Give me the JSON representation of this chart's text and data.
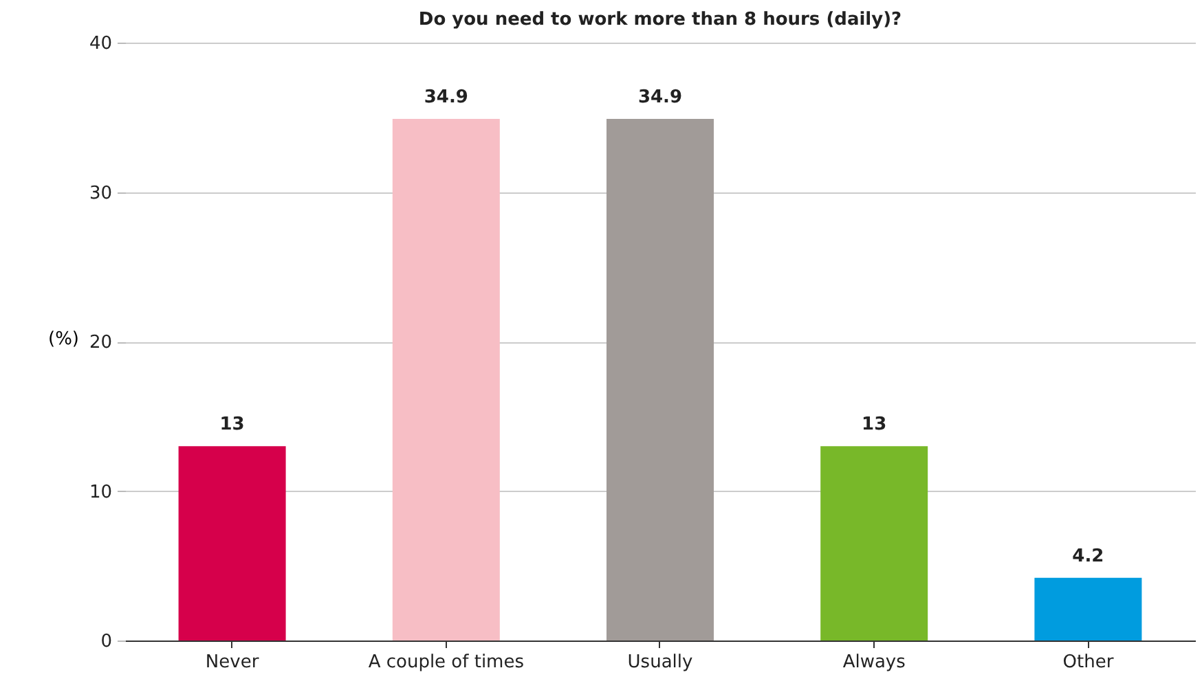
{
  "chart_data": {
    "type": "bar",
    "title": "Do you need to work more than 8 hours (daily)?",
    "ylabel": "(%)",
    "categories": [
      "Never",
      "A couple of times",
      "Usually",
      "Always",
      "Other"
    ],
    "values": [
      13,
      34.9,
      34.9,
      13,
      4.2
    ],
    "colors": [
      "#d6004b",
      "#f7bec5",
      "#a19b98",
      "#78b829",
      "#009cdf"
    ],
    "ylim": [
      0,
      40
    ],
    "yticks": [
      0,
      10,
      20,
      30,
      40
    ],
    "grid": "y",
    "data_labels": true
  }
}
